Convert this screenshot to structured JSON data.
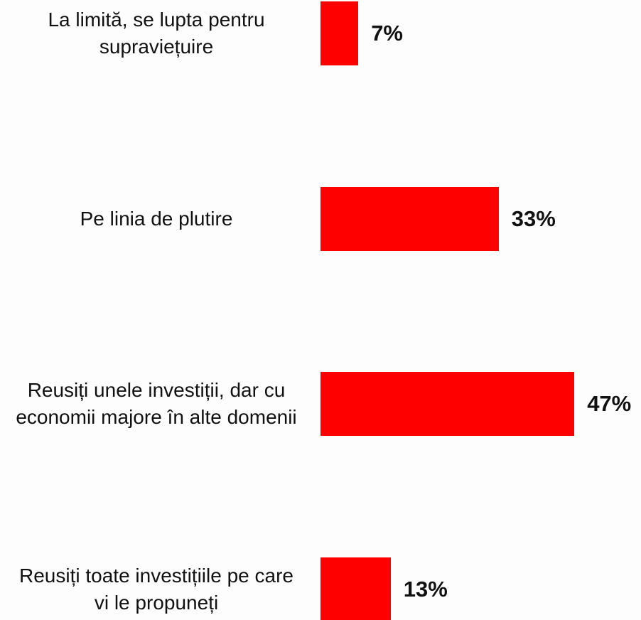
{
  "chart_data": {
    "type": "bar",
    "orientation": "horizontal",
    "color": "#ff0000",
    "categories": [
      "La limită, se lupta pentru supraviețuire",
      "Pe linia de plutire",
      "Reusiți unele investiții, dar cu economii majore în alte domenii",
      "Reusiți toate investițiile pe care vi le propuneți"
    ],
    "values": [
      7,
      33,
      47,
      13
    ],
    "value_labels": [
      "7%",
      "33%",
      "47%",
      "13%"
    ]
  }
}
